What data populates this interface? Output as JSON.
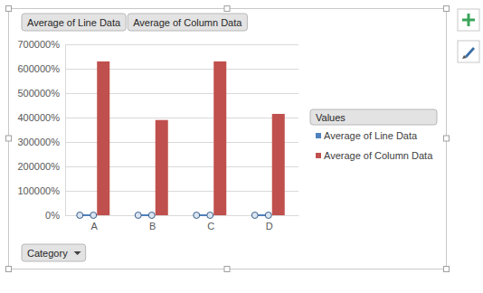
{
  "chart_data": {
    "type": "bar",
    "categories": [
      "A",
      "B",
      "C",
      "D"
    ],
    "series": [
      {
        "name": "Average of Line Data",
        "type": "line",
        "color": "#4f81bd",
        "marker": "circle",
        "values": [
          0,
          0,
          0,
          0
        ]
      },
      {
        "name": "Average of Column Data",
        "type": "bar",
        "color": "#c0504d",
        "values": [
          630000,
          390000,
          630000,
          415000
        ]
      }
    ],
    "ylim": [
      0,
      700000
    ],
    "yticks": [
      {
        "value": 0,
        "label": "0%"
      },
      {
        "value": 100000,
        "label": "100000%"
      },
      {
        "value": 200000,
        "label": "200000%"
      },
      {
        "value": 300000,
        "label": "300000%"
      },
      {
        "value": 400000,
        "label": "400000%"
      },
      {
        "value": 500000,
        "label": "500000%"
      },
      {
        "value": 600000,
        "label": "600000%"
      },
      {
        "value": 700000,
        "label": "700000%"
      }
    ],
    "grid": true,
    "legend": "right",
    "legend_title": "Values",
    "x_label": "Category"
  }
}
